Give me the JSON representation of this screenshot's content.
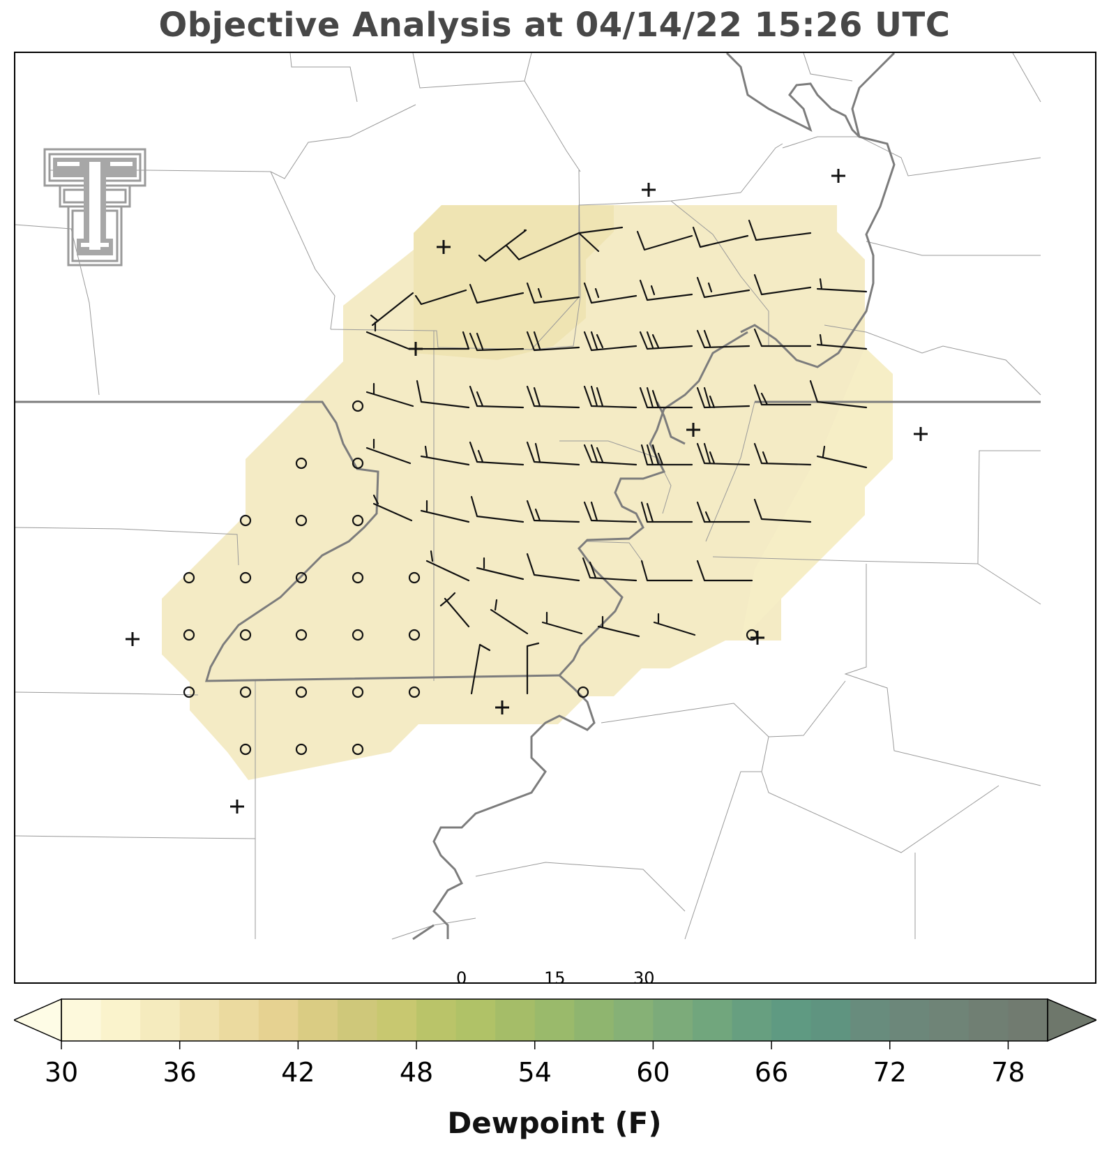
{
  "title": "Objective Analysis at 04/14/22 15:26 UTC",
  "colorbar": {
    "label": "Dewpoint (F)",
    "min": 30,
    "max": 80,
    "step": 2,
    "extend": "both",
    "ticks": [
      "30",
      "36",
      "42",
      "48",
      "54",
      "60",
      "66",
      "72",
      "78"
    ],
    "colors": [
      "#fdf9dc",
      "#faf3cc",
      "#f5ebbe",
      "#f0e2ae",
      "#ebda9f",
      "#e6d291",
      "#dacc83",
      "#cfc87a",
      "#c8c870",
      "#bac469",
      "#b0c267",
      "#a5bd68",
      "#9aba6b",
      "#8fb56f",
      "#86b176",
      "#7cab7a",
      "#71a67d",
      "#679f80",
      "#5f9a82",
      "#5f9480",
      "#688c7d",
      "#6c877a",
      "#6f8477",
      "#707f73",
      "#717b70"
    ],
    "under_color": "#fefce6",
    "over_color": "#6e776b"
  },
  "scale_bar": {
    "labels": [
      "0",
      "15",
      "30"
    ],
    "unit": "km"
  },
  "field": {
    "name": "dewpoint",
    "shaded_range_F": [
      34,
      40
    ],
    "region": "central band, SW to NE"
  },
  "markers": {
    "missing_station": "+",
    "calm_wind": "o"
  },
  "logo": {
    "name": "texas-tech-logo"
  }
}
